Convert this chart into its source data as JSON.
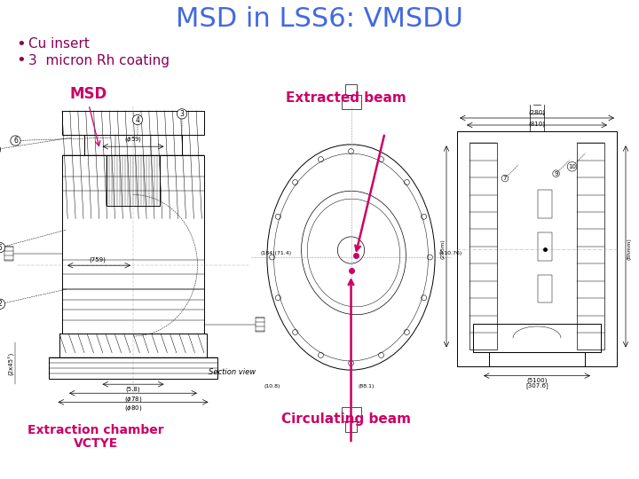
{
  "title": "MSD in LSS6: VMSDU",
  "title_color": "#4169E1",
  "title_fontsize": 22,
  "bullet_points": [
    "Cu insert",
    "3  micron Rh coating"
  ],
  "bullet_color": "#8B0057",
  "bullet_fontsize": 11,
  "background_color": "#FFFFFF",
  "label_msd": "MSD",
  "label_msd_color": "#CC0066",
  "label_extracted": "Extracted beam",
  "label_circulating": "Circulating beam",
  "label_extraction_chamber": "Extraction chamber",
  "label_vctye": "VCTYE",
  "label_color": "#CC0066",
  "label_fontsize": 10,
  "lc": "#000000",
  "gray": "#888888"
}
